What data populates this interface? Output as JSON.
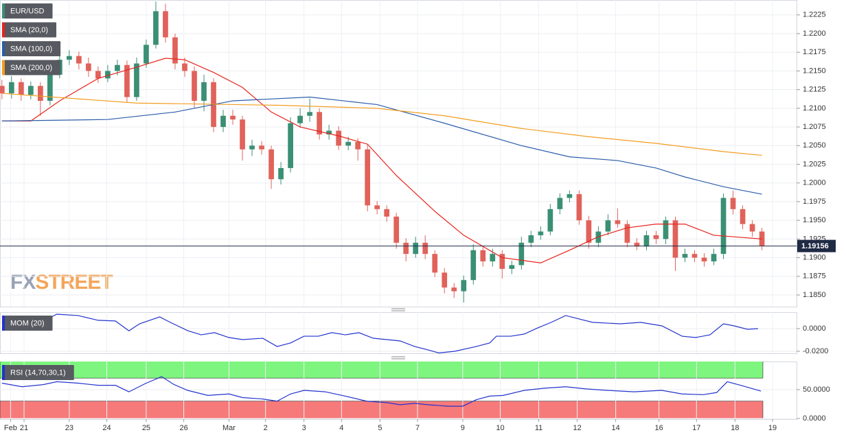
{
  "chart_data": [
    {
      "type": "candlestick",
      "xlim": [
        -0.2,
        82.6
      ],
      "ylim": [
        1.18344,
        1.2245
      ],
      "yticks": [
        1.2225,
        {
          "value": 1.22,
          "label": "1.2200"
        },
        1.2175,
        {
          "value": 1.215,
          "label": "1.2150"
        },
        1.2125,
        {
          "value": 1.21,
          "label": "1.2100"
        },
        1.2075,
        {
          "value": 1.205,
          "label": "1.2050"
        },
        1.2025,
        {
          "value": 1.2,
          "label": "1.2000"
        },
        1.1975,
        {
          "value": 1.195,
          "label": "1.1950"
        },
        1.1925,
        {
          "value": 1.19,
          "label": "1.1900"
        },
        1.1875,
        {
          "value": 1.185,
          "label": "1.1850"
        }
      ],
      "grid": true,
      "xticks": [
        {
          "value": 0.9,
          "label": "Feb"
        },
        {
          "value": 2.3,
          "label": "21"
        },
        {
          "value": 7.0,
          "label": "23"
        },
        {
          "value": 10.9,
          "label": "24"
        },
        {
          "value": 15.0,
          "label": "25"
        },
        {
          "value": 18.9,
          "label": "26"
        },
        {
          "value": 23.6,
          "label": "Mar"
        },
        {
          "value": 27.4,
          "label": "2"
        },
        {
          "value": 31.4,
          "label": "3"
        },
        {
          "value": 35.3,
          "label": "4"
        },
        {
          "value": 39.3,
          "label": "5"
        },
        {
          "value": 43.2,
          "label": "7"
        },
        {
          "value": 47.9,
          "label": "9"
        },
        {
          "value": 51.8,
          "label": "10"
        },
        {
          "value": 55.8,
          "label": "11"
        },
        {
          "value": 59.8,
          "label": "12"
        },
        {
          "value": 63.8,
          "label": "14"
        },
        {
          "value": 68.3,
          "label": "16"
        },
        {
          "value": 72.2,
          "label": "17"
        },
        {
          "value": 76.2,
          "label": "18"
        },
        {
          "value": 80.1,
          "label": "19"
        }
      ],
      "last_price": 1.19156,
      "watermark": [
        "FX",
        "STREET"
      ],
      "series": [
        {
          "name": "EUR/USD",
          "type": "candlestick",
          "color": "#3a8f74",
          "down_color": "#e0625a",
          "values": [
            [
              1.213,
              1.2138,
              1.2112,
              1.212
            ],
            [
              1.212,
              1.2143,
              1.2113,
              1.2135
            ],
            [
              1.2135,
              1.214,
              1.211,
              1.2118
            ],
            [
              1.2118,
              1.2136,
              1.2112,
              1.213
            ],
            [
              1.213,
              1.2135,
              1.209,
              1.211
            ],
            [
              1.211,
              1.2152,
              1.2104,
              1.2145
            ],
            [
              1.2145,
              1.2172,
              1.214,
              1.2165
            ],
            [
              1.2165,
              1.2178,
              1.2158,
              1.217
            ],
            [
              1.217,
              1.2176,
              1.2152,
              1.216
            ],
            [
              1.216,
              1.2168,
              1.2142,
              1.215
            ],
            [
              1.215,
              1.2156,
              1.2134,
              1.214
            ],
            [
              1.214,
              1.2158,
              1.2135,
              1.215
            ],
            [
              1.215,
              1.2165,
              1.2144,
              1.2158
            ],
            [
              1.2158,
              1.2164,
              1.2108,
              1.2115
            ],
            [
              1.2115,
              1.2168,
              1.211,
              1.216
            ],
            [
              1.216,
              1.2192,
              1.2154,
              1.2185
            ],
            [
              1.2185,
              1.2243,
              1.218,
              1.223
            ],
            [
              1.223,
              1.224,
              1.2188,
              1.2195
            ],
            [
              1.2195,
              1.22,
              1.2152,
              1.216
            ],
            [
              1.216,
              1.2168,
              1.2142,
              1.215
            ],
            [
              1.215,
              1.2156,
              1.21,
              1.211
            ],
            [
              1.211,
              1.2145,
              1.2096,
              1.2135
            ],
            [
              1.2135,
              1.214,
              1.2068,
              1.2075
            ],
            [
              1.2075,
              1.2098,
              1.2068,
              1.209
            ],
            [
              1.209,
              1.2098,
              1.2078,
              1.2085
            ],
            [
              1.2085,
              1.209,
              1.203,
              1.2045
            ],
            [
              1.2045,
              1.2058,
              1.2036,
              1.205
            ],
            [
              1.205,
              1.2056,
              1.2038,
              1.2045
            ],
            [
              1.2045,
              1.205,
              1.1992,
              1.2005
            ],
            [
              1.2005,
              1.2028,
              1.1998,
              1.202
            ],
            [
              1.202,
              1.2088,
              1.2014,
              1.208
            ],
            [
              1.208,
              1.21,
              1.2074,
              1.209
            ],
            [
              1.209,
              1.2113,
              1.2082,
              1.2095
            ],
            [
              1.2095,
              1.21,
              1.2058,
              1.2065
            ],
            [
              1.2065,
              1.2078,
              1.2058,
              1.207
            ],
            [
              1.207,
              1.2076,
              1.2044,
              1.205
            ],
            [
              1.205,
              1.2062,
              1.2044,
              1.2055
            ],
            [
              1.2055,
              1.206,
              1.203,
              1.2045
            ],
            [
              1.2045,
              1.2052,
              1.1962,
              1.197
            ],
            [
              1.197,
              1.1976,
              1.1958,
              1.1965
            ],
            [
              1.1965,
              1.197,
              1.1948,
              1.1955
            ],
            [
              1.1955,
              1.196,
              1.1912,
              1.192
            ],
            [
              1.192,
              1.1926,
              1.1895,
              1.1905
            ],
            [
              1.1905,
              1.1928,
              1.19,
              1.192
            ],
            [
              1.192,
              1.193,
              1.1898,
              1.1905
            ],
            [
              1.1905,
              1.191,
              1.1874,
              1.188
            ],
            [
              1.188,
              1.1886,
              1.1852,
              1.186
            ],
            [
              1.186,
              1.1866,
              1.1846,
              1.1855
            ],
            [
              1.1855,
              1.1876,
              1.184,
              1.187
            ],
            [
              1.187,
              1.1918,
              1.1864,
              1.191
            ],
            [
              1.191,
              1.1916,
              1.1888,
              1.1895
            ],
            [
              1.1895,
              1.1912,
              1.1888,
              1.1905
            ],
            [
              1.1905,
              1.191,
              1.1872,
              1.1885
            ],
            [
              1.1885,
              1.1896,
              1.1878,
              1.189
            ],
            [
              1.189,
              1.1928,
              1.1884,
              1.192
            ],
            [
              1.192,
              1.1936,
              1.1914,
              1.193
            ],
            [
              1.193,
              1.1942,
              1.1924,
              1.1935
            ],
            [
              1.1935,
              1.1972,
              1.193,
              1.1965
            ],
            [
              1.1965,
              1.1986,
              1.1958,
              1.198
            ],
            [
              1.198,
              1.199,
              1.1974,
              1.1985
            ],
            [
              1.1985,
              1.199,
              1.1944,
              1.195
            ],
            [
              1.195,
              1.1956,
              1.1912,
              1.192
            ],
            [
              1.192,
              1.1942,
              1.1914,
              1.1935
            ],
            [
              1.1935,
              1.1958,
              1.193,
              1.195
            ],
            [
              1.195,
              1.1966,
              1.194,
              1.1945
            ],
            [
              1.1945,
              1.195,
              1.1914,
              1.192
            ],
            [
              1.192,
              1.1926,
              1.191,
              1.1915
            ],
            [
              1.1915,
              1.1936,
              1.191,
              1.193
            ],
            [
              1.193,
              1.1936,
              1.1918,
              1.1925
            ],
            [
              1.1925,
              1.1955,
              1.1918,
              1.195
            ],
            [
              1.195,
              1.1955,
              1.1882,
              1.19
            ],
            [
              1.19,
              1.1912,
              1.1894,
              1.1905
            ],
            [
              1.1905,
              1.191,
              1.1894,
              1.19
            ],
            [
              1.19,
              1.1906,
              1.1888,
              1.1895
            ],
            [
              1.1895,
              1.1912,
              1.189,
              1.1905
            ],
            [
              1.1905,
              1.1986,
              1.1898,
              1.198
            ],
            [
              1.198,
              1.199,
              1.1958,
              1.1965
            ],
            [
              1.1965,
              1.197,
              1.1938,
              1.1945
            ],
            [
              1.1945,
              1.195,
              1.1928,
              1.1935
            ],
            [
              1.1935,
              1.194,
              1.191,
              1.1916
            ]
          ]
        },
        {
          "name": "SMA (20,0)",
          "type": "line",
          "color": "#e8221b",
          "x": [
            0,
            3,
            6,
            10,
            14,
            17,
            19,
            22,
            25,
            28,
            31,
            35,
            38,
            41,
            45,
            48,
            52,
            56,
            59,
            62,
            65,
            68,
            71,
            74,
            77,
            79
          ],
          "values": [
            1.2083,
            1.2083,
            1.211,
            1.214,
            1.2155,
            1.2167,
            1.2165,
            1.2148,
            1.2128,
            1.2095,
            1.2075,
            1.2063,
            1.2052,
            1.201,
            1.1962,
            1.193,
            1.19,
            1.1893,
            1.191,
            1.1928,
            1.194,
            1.1945,
            1.1945,
            1.193,
            1.1927,
            1.1925
          ]
        },
        {
          "name": "SMA (100,0)",
          "type": "line",
          "color": "#2a5caa",
          "x": [
            0,
            11,
            18,
            24,
            32,
            39,
            46,
            54,
            59,
            64,
            68,
            71,
            75,
            79
          ],
          "values": [
            1.2083,
            1.2085,
            1.2095,
            1.211,
            1.2115,
            1.2105,
            1.208,
            1.205,
            1.2035,
            1.203,
            1.202,
            1.2008,
            1.1995,
            1.1985
          ]
        },
        {
          "name": "SMA (200,0)",
          "type": "line",
          "color": "#f39c1f",
          "x": [
            0,
            14,
            29,
            39,
            46,
            54,
            61,
            68,
            75,
            79
          ],
          "values": [
            1.212,
            1.2107,
            1.2104,
            1.21,
            1.209,
            1.2073,
            1.2062,
            1.2053,
            1.2042,
            1.2037
          ]
        }
      ]
    },
    {
      "type": "line",
      "ylim": [
        -0.0218,
        0.0145
      ],
      "yticks": [
        {
          "value": 0,
          "label": "0.0000"
        },
        {
          "value": -0.02,
          "label": "-0.0200"
        }
      ],
      "series": [
        {
          "name": "MOM (20)",
          "color": "#2233cc",
          "x": [
            0,
            2.1,
            4.3,
            5.7,
            7.9,
            10,
            11.8,
            13.2,
            14.3,
            16.4,
            17.5,
            19.3,
            20.7,
            22.1,
            23.6,
            25,
            27.1,
            28.6,
            30,
            31.4,
            32.9,
            34.3,
            35.7,
            37.1,
            38.6,
            40,
            41.4,
            42.9,
            44.3,
            45.4,
            47.1,
            49.3,
            50.7,
            51.4,
            52.9,
            54.3,
            55.7,
            57.1,
            58.6,
            60,
            61.4,
            64.3,
            66.4,
            68.6,
            70.7,
            72.1,
            73.6,
            75,
            76.1,
            77.5,
            78.6
          ],
          "values": [
            0.0055,
            0.0055,
            0.0065,
            0.0127,
            0.0115,
            0.0073,
            0.0067,
            -0.002,
            0.0042,
            0.0103,
            0.0055,
            -0.0018,
            -0.0055,
            -0.0036,
            -0.0079,
            -0.0097,
            -0.0085,
            -0.0158,
            -0.0127,
            -0.0067,
            -0.0067,
            -0.0036,
            -0.0055,
            -0.0036,
            -0.0085,
            -0.0097,
            -0.0109,
            -0.0158,
            -0.0188,
            -0.0215,
            -0.02,
            -0.0158,
            -0.0127,
            -0.0067,
            -0.0067,
            -0.0048,
            0.0006,
            0.0055,
            0.0115,
            0.0085,
            0.0055,
            0.0042,
            0.0055,
            0.0024,
            -0.0067,
            -0.0079,
            -0.0055,
            0.0042,
            0.0024,
            -0.0006,
            0
          ]
        }
      ]
    },
    {
      "type": "line",
      "ylim": [
        -1.25,
        98.75
      ],
      "yticks": [
        {
          "value": 50,
          "label": "50.0000"
        },
        {
          "value": 0,
          "label": "0.0000"
        }
      ],
      "bands": [
        {
          "from": 70,
          "to": 100,
          "color": "#7ef57e"
        },
        {
          "from": 0,
          "to": 30,
          "color": "#f77a7a"
        }
      ],
      "series": [
        {
          "name": "RSI (14,70,30,1)",
          "color": "#2233cc",
          "x": [
            0,
            2.1,
            4.3,
            5.7,
            7.9,
            10,
            11.8,
            13.2,
            15,
            16.6,
            17.9,
            19.3,
            21.4,
            23.6,
            25,
            27.1,
            28.6,
            30,
            31.4,
            33.6,
            35.7,
            37.9,
            40,
            41.4,
            42.9,
            44.3,
            46.4,
            47.9,
            49.3,
            50.7,
            52.1,
            54.3,
            56.4,
            58.6,
            60.7,
            62.9,
            65.7,
            68.6,
            70.7,
            72.9,
            74.3,
            75.4,
            76.8,
            78.9
          ],
          "values": [
            61.25,
            55,
            58.75,
            63.75,
            61.25,
            57.5,
            57.5,
            46.25,
            61.25,
            72.5,
            58.75,
            48.75,
            40,
            42.5,
            36.25,
            33.75,
            30,
            42.5,
            48.75,
            46.25,
            38.75,
            30,
            27.5,
            23.75,
            26.25,
            23.75,
            21.25,
            21.25,
            32.5,
            38.75,
            40,
            48.75,
            52.5,
            55,
            51.25,
            48.75,
            46.25,
            48.75,
            42.5,
            41.25,
            45,
            63.75,
            57.5,
            47.5
          ]
        }
      ]
    }
  ]
}
